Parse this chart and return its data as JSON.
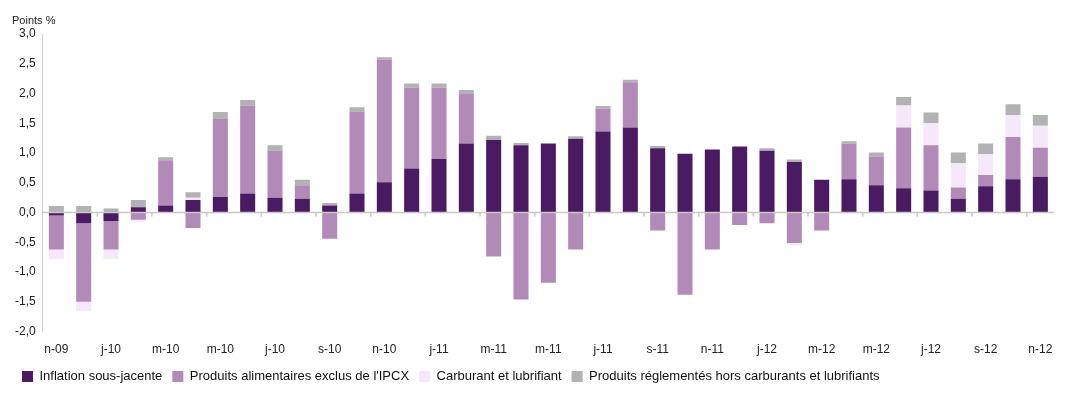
{
  "chart_data": {
    "type": "bar",
    "stacked": true,
    "ylabel": "Points %",
    "categories": [
      "n-09",
      null,
      "j-10",
      null,
      "m-10",
      null,
      "m-10",
      null,
      "j-10",
      null,
      "s-10",
      null,
      "n-10",
      null,
      "j-11",
      null,
      "m-11",
      null,
      "m-11",
      null,
      "j-11",
      null,
      "s-11",
      null,
      "n-11",
      null,
      "j-12",
      null,
      "m-12",
      null,
      "m-12",
      null,
      "j-12",
      null,
      "s-12",
      null,
      "n-12"
    ],
    "series": [
      {
        "name": "Inflation sous-jacente",
        "color": "#4a1a63",
        "values": [
          -0.05,
          -0.18,
          -0.14,
          0.09,
          0.12,
          0.21,
          0.26,
          0.32,
          0.25,
          0.23,
          0.12,
          0.32,
          0.51,
          0.74,
          0.9,
          1.16,
          1.22,
          1.13,
          1.16,
          1.24,
          1.36,
          1.43,
          1.08,
          0.99,
          1.06,
          1.11,
          1.04,
          0.85,
          0.55,
          0.56,
          0.46,
          0.41,
          0.37,
          0.23,
          0.44,
          0.56,
          0.6
        ]
      },
      {
        "name": "Produits alimentaires exclus de l'IPCX",
        "color": "#b28ab8",
        "values": [
          -0.57,
          -1.32,
          -0.48,
          -0.12,
          0.76,
          -0.26,
          1.31,
          1.48,
          0.79,
          0.23,
          -0.44,
          1.38,
          2.06,
          1.36,
          1.2,
          0.83,
          -0.74,
          -1.46,
          -1.18,
          -0.62,
          0.39,
          0.76,
          -0.3,
          -1.38,
          -0.62,
          -0.21,
          -0.18,
          -0.51,
          -0.3,
          0.6,
          0.48,
          1.02,
          0.76,
          0.19,
          0.19,
          0.71,
          0.49
        ]
      },
      {
        "name": "Carburant et lubrifiant",
        "color": "#f5e8f8",
        "values": [
          -0.16,
          -0.16,
          -0.16,
          -0.03,
          null,
          0.04,
          null,
          null,
          null,
          null,
          null,
          null,
          null,
          null,
          null,
          null,
          null,
          null,
          null,
          null,
          null,
          null,
          null,
          null,
          null,
          null,
          null,
          -0.04,
          null,
          null,
          null,
          0.37,
          0.37,
          0.41,
          0.35,
          0.37,
          0.37
        ]
      },
      {
        "name": "Produits réglementés hors carburants et lubrifiants",
        "color": "#b2b2b4",
        "values": [
          0.11,
          0.11,
          0.07,
          0.12,
          0.05,
          0.09,
          0.12,
          0.09,
          0.09,
          0.09,
          0.04,
          0.07,
          0.04,
          0.07,
          0.07,
          0.07,
          0.07,
          0.04,
          null,
          0.04,
          0.04,
          0.04,
          0.04,
          null,
          null,
          null,
          0.04,
          0.04,
          null,
          0.04,
          0.07,
          0.14,
          0.18,
          0.18,
          0.18,
          0.18,
          0.18
        ]
      }
    ],
    "ylim": [
      -2.0,
      3.0
    ],
    "yticks": [
      {
        "value": -2.0,
        "label": "-2,0"
      },
      {
        "value": -1.5,
        "label": "-1,5"
      },
      {
        "value": -1.0,
        "label": "-1,0"
      },
      {
        "value": -0.5,
        "label": "-0,5"
      },
      {
        "value": 0.0,
        "label": "0,0"
      },
      {
        "value": 0.5,
        "label": "0,5"
      },
      {
        "value": 1.0,
        "label": "1,0"
      },
      {
        "value": 1.5,
        "label": "1,5"
      },
      {
        "value": 2.0,
        "label": "2,0"
      },
      {
        "value": 2.5,
        "label": "2,5"
      },
      {
        "value": 3.0,
        "label": "3,0"
      }
    ],
    "legend": "bottom"
  }
}
